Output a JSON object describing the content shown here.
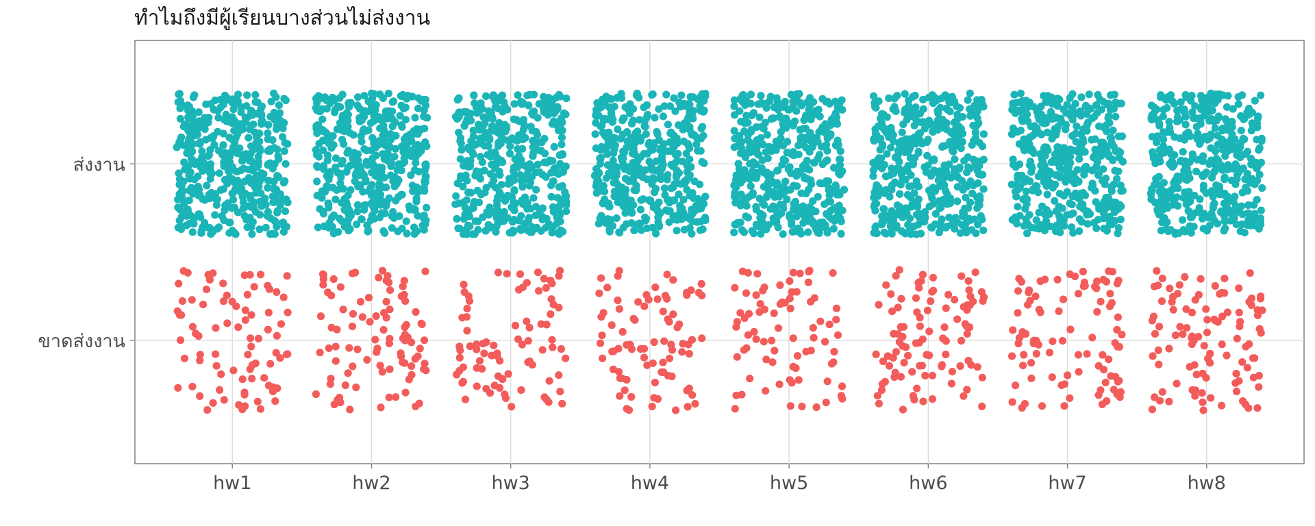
{
  "chart_data": {
    "type": "scatter",
    "title": "",
    "subtitle": "ทำไมถึงมีผู้เรียนบางส่วนไม่ส่งงาน",
    "xlabel": "",
    "ylabel": "",
    "categories": [
      "hw1",
      "hw2",
      "hw3",
      "hw4",
      "hw5",
      "hw6",
      "hw7",
      "hw8"
    ],
    "y_categories": [
      "ขาดส่งงาน",
      "ส่งงาน"
    ],
    "grid": true,
    "legend": "none",
    "jitter": true,
    "series": [
      {
        "category": "ส่งงาน",
        "color": "#1BB5B7",
        "counts": [
          440,
          440,
          440,
          440,
          440,
          440,
          440,
          440
        ]
      },
      {
        "category": "ขาดส่งงาน",
        "color": "#F25C5A",
        "counts": [
          85,
          95,
          85,
          85,
          80,
          100,
          95,
          105
        ]
      }
    ]
  }
}
